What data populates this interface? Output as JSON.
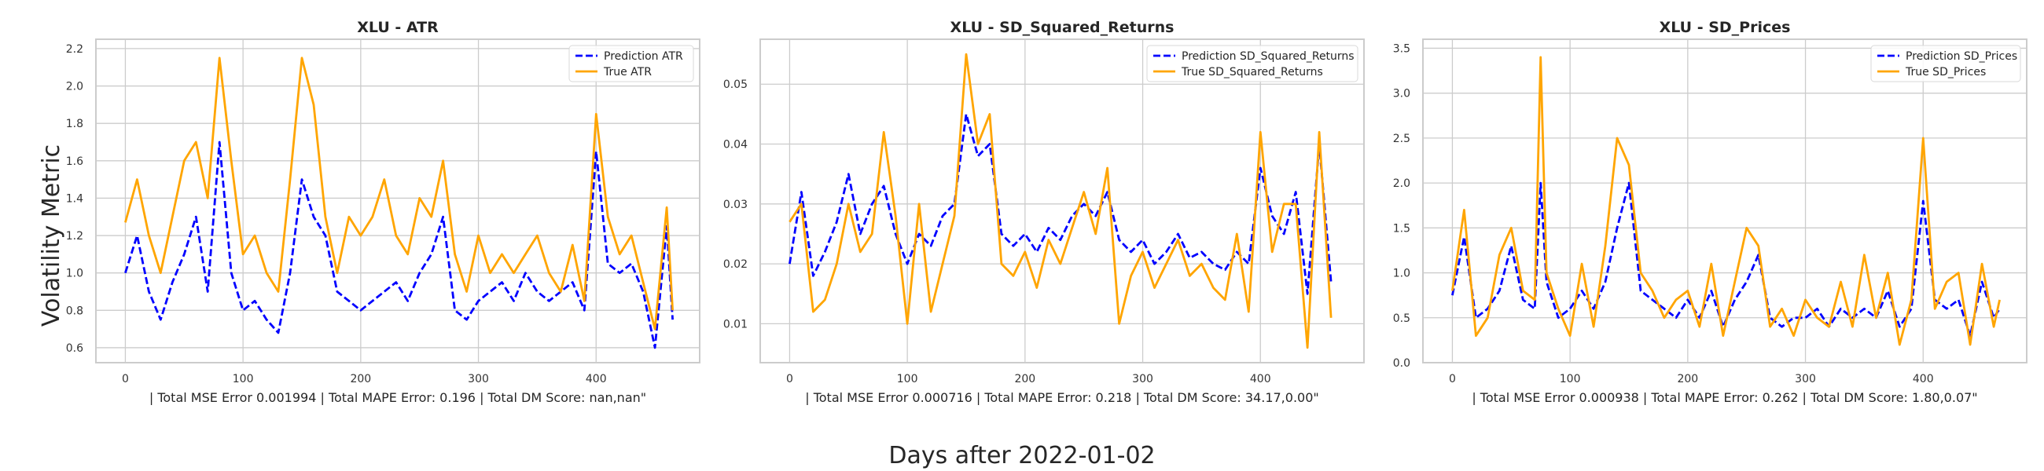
{
  "figure": {
    "ylabel": "Volatility Metric",
    "xlabel": "Days after 2022-01-02"
  },
  "colors": {
    "prediction": "#0000ff",
    "true": "#ffa500",
    "grid": "#cccccc",
    "frame": "#cccccc"
  },
  "chart_data": [
    {
      "type": "line",
      "title": "XLU - ATR",
      "xlabel": "| Total MSE Error 0.001994 | Total MAPE Error: 0.196 | Total DM Score: nan,nan\"",
      "xlim": [
        -25,
        488
      ],
      "ylim": [
        0.52,
        2.25
      ],
      "xticks": [
        0,
        100,
        200,
        300,
        400
      ],
      "yticks": [
        0.6,
        0.8,
        1.0,
        1.2,
        1.4,
        1.6,
        1.8,
        2.0,
        2.2
      ],
      "ytick_labels": [
        "0.6",
        "0.8",
        "1.0",
        "1.2",
        "1.4",
        "1.6",
        "1.8",
        "2.0",
        "2.2"
      ],
      "grid": true,
      "legend": "top-right",
      "series": [
        {
          "name": "Prediction ATR",
          "style": "dashed",
          "x": [
            0,
            10,
            20,
            30,
            40,
            50,
            60,
            70,
            80,
            90,
            100,
            110,
            120,
            130,
            140,
            150,
            160,
            170,
            180,
            190,
            200,
            210,
            220,
            230,
            240,
            250,
            260,
            270,
            280,
            290,
            300,
            310,
            320,
            330,
            340,
            350,
            360,
            370,
            380,
            390,
            400,
            410,
            420,
            430,
            440,
            450,
            460,
            465
          ],
          "y": [
            1.0,
            1.2,
            0.9,
            0.75,
            0.95,
            1.1,
            1.3,
            0.9,
            1.7,
            1.0,
            0.8,
            0.85,
            0.75,
            0.68,
            1.0,
            1.5,
            1.3,
            1.2,
            0.9,
            0.85,
            0.8,
            0.85,
            0.9,
            0.95,
            0.85,
            1.0,
            1.1,
            1.3,
            0.8,
            0.75,
            0.85,
            0.9,
            0.95,
            0.85,
            1.0,
            0.9,
            0.85,
            0.9,
            0.95,
            0.8,
            1.65,
            1.05,
            1.0,
            1.05,
            0.9,
            0.6,
            1.25,
            0.75
          ]
        },
        {
          "name": "True ATR",
          "style": "solid",
          "x": [
            0,
            10,
            20,
            30,
            40,
            50,
            60,
            70,
            80,
            90,
            100,
            110,
            120,
            130,
            140,
            150,
            160,
            170,
            180,
            190,
            200,
            210,
            220,
            230,
            240,
            250,
            260,
            270,
            280,
            290,
            300,
            310,
            320,
            330,
            340,
            350,
            360,
            370,
            380,
            390,
            400,
            410,
            420,
            430,
            440,
            450,
            460,
            465
          ],
          "y": [
            1.27,
            1.5,
            1.2,
            1.0,
            1.3,
            1.6,
            1.7,
            1.4,
            2.15,
            1.6,
            1.1,
            1.2,
            1.0,
            0.9,
            1.5,
            2.15,
            1.9,
            1.3,
            1.0,
            1.3,
            1.2,
            1.3,
            1.5,
            1.2,
            1.1,
            1.4,
            1.3,
            1.6,
            1.1,
            0.9,
            1.2,
            1.0,
            1.1,
            1.0,
            1.1,
            1.2,
            1.0,
            0.9,
            1.15,
            0.85,
            1.85,
            1.3,
            1.1,
            1.2,
            0.95,
            0.7,
            1.35,
            0.8
          ]
        }
      ]
    },
    {
      "type": "line",
      "title": "XLU - SD_Squared_Returns",
      "xlabel": "| Total MSE Error 0.000716 | Total MAPE Error: 0.218 | Total DM Score: 34.17,0.00\"",
      "xlim": [
        -25,
        488
      ],
      "ylim": [
        0.0035,
        0.0575
      ],
      "xticks": [
        0,
        100,
        200,
        300,
        400
      ],
      "yticks": [
        0.01,
        0.02,
        0.03,
        0.04,
        0.05
      ],
      "ytick_labels": [
        "0.01",
        "0.02",
        "0.03",
        "0.04",
        "0.05"
      ],
      "grid": true,
      "legend": "top-right",
      "series": [
        {
          "name": "Prediction SD_Squared_Returns",
          "style": "dashed",
          "x": [
            0,
            10,
            20,
            30,
            40,
            50,
            60,
            70,
            80,
            90,
            100,
            110,
            120,
            130,
            140,
            150,
            160,
            170,
            180,
            190,
            200,
            210,
            220,
            230,
            240,
            250,
            260,
            270,
            280,
            290,
            300,
            310,
            320,
            330,
            340,
            350,
            360,
            370,
            380,
            390,
            400,
            410,
            420,
            430,
            440,
            450,
            460
          ],
          "y": [
            0.02,
            0.032,
            0.018,
            0.022,
            0.027,
            0.035,
            0.025,
            0.03,
            0.033,
            0.025,
            0.02,
            0.025,
            0.023,
            0.028,
            0.03,
            0.045,
            0.038,
            0.04,
            0.025,
            0.023,
            0.025,
            0.022,
            0.026,
            0.024,
            0.028,
            0.03,
            0.028,
            0.032,
            0.024,
            0.022,
            0.024,
            0.02,
            0.022,
            0.025,
            0.021,
            0.022,
            0.02,
            0.019,
            0.022,
            0.02,
            0.036,
            0.028,
            0.025,
            0.032,
            0.015,
            0.04,
            0.017
          ]
        },
        {
          "name": "True SD_Squared_Returns",
          "style": "solid",
          "x": [
            0,
            10,
            20,
            30,
            40,
            50,
            60,
            70,
            80,
            90,
            100,
            110,
            120,
            130,
            140,
            150,
            160,
            170,
            180,
            190,
            200,
            210,
            220,
            230,
            240,
            250,
            260,
            270,
            280,
            290,
            300,
            310,
            320,
            330,
            340,
            350,
            360,
            370,
            380,
            390,
            400,
            410,
            420,
            430,
            440,
            450,
            460
          ],
          "y": [
            0.027,
            0.03,
            0.012,
            0.014,
            0.02,
            0.03,
            0.022,
            0.025,
            0.042,
            0.028,
            0.01,
            0.03,
            0.012,
            0.02,
            0.028,
            0.055,
            0.04,
            0.045,
            0.02,
            0.018,
            0.022,
            0.016,
            0.024,
            0.02,
            0.026,
            0.032,
            0.025,
            0.036,
            0.01,
            0.018,
            0.022,
            0.016,
            0.02,
            0.024,
            0.018,
            0.02,
            0.016,
            0.014,
            0.025,
            0.012,
            0.042,
            0.022,
            0.03,
            0.03,
            0.006,
            0.042,
            0.011
          ]
        }
      ]
    },
    {
      "type": "line",
      "title": "XLU - SD_Prices",
      "xlabel": "| Total MSE Error 0.000938 | Total MAPE Error: 0.262 | Total DM Score: 1.80,0.07\"",
      "xlim": [
        -25,
        488
      ],
      "ylim": [
        0.0,
        3.6
      ],
      "xticks": [
        0,
        100,
        200,
        300,
        400
      ],
      "yticks": [
        0.0,
        0.5,
        1.0,
        1.5,
        2.0,
        2.5,
        3.0,
        3.5
      ],
      "ytick_labels": [
        "0.0",
        "0.5",
        "1.0",
        "1.5",
        "2.0",
        "2.5",
        "3.0",
        "3.5"
      ],
      "grid": true,
      "legend": "top-right",
      "series": [
        {
          "name": "Prediction SD_Prices",
          "style": "dashed",
          "x": [
            0,
            10,
            20,
            30,
            40,
            50,
            60,
            70,
            75,
            80,
            90,
            100,
            110,
            120,
            130,
            140,
            150,
            160,
            170,
            180,
            190,
            200,
            210,
            220,
            230,
            240,
            250,
            260,
            270,
            280,
            290,
            300,
            310,
            320,
            330,
            340,
            350,
            360,
            370,
            380,
            390,
            400,
            410,
            420,
            430,
            440,
            450,
            460,
            465
          ],
          "y": [
            0.75,
            1.4,
            0.5,
            0.6,
            0.8,
            1.3,
            0.7,
            0.6,
            2.0,
            0.9,
            0.5,
            0.6,
            0.8,
            0.6,
            0.9,
            1.5,
            2.0,
            0.8,
            0.7,
            0.6,
            0.5,
            0.7,
            0.5,
            0.8,
            0.4,
            0.7,
            0.9,
            1.2,
            0.5,
            0.4,
            0.5,
            0.5,
            0.6,
            0.4,
            0.6,
            0.5,
            0.6,
            0.5,
            0.8,
            0.4,
            0.6,
            1.8,
            0.7,
            0.6,
            0.7,
            0.3,
            0.9,
            0.5,
            0.6
          ]
        },
        {
          "name": "True SD_Prices",
          "style": "solid",
          "x": [
            0,
            10,
            20,
            30,
            40,
            50,
            60,
            70,
            75,
            80,
            90,
            100,
            110,
            120,
            130,
            140,
            150,
            160,
            170,
            180,
            190,
            200,
            210,
            220,
            230,
            240,
            250,
            260,
            270,
            280,
            290,
            300,
            310,
            320,
            330,
            340,
            350,
            360,
            370,
            380,
            390,
            400,
            410,
            420,
            430,
            440,
            450,
            460,
            465
          ],
          "y": [
            0.8,
            1.7,
            0.3,
            0.5,
            1.2,
            1.5,
            0.8,
            0.7,
            3.4,
            1.0,
            0.6,
            0.3,
            1.1,
            0.4,
            1.3,
            2.5,
            2.2,
            1.0,
            0.8,
            0.5,
            0.7,
            0.8,
            0.4,
            1.1,
            0.3,
            0.9,
            1.5,
            1.3,
            0.4,
            0.6,
            0.3,
            0.7,
            0.5,
            0.4,
            0.9,
            0.4,
            1.2,
            0.5,
            1.0,
            0.2,
            0.7,
            2.5,
            0.6,
            0.9,
            1.0,
            0.2,
            1.1,
            0.4,
            0.7
          ]
        }
      ]
    }
  ]
}
